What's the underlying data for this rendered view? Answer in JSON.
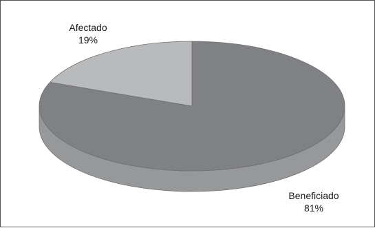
{
  "chart_data": {
    "type": "pie",
    "style": "3d",
    "title": "",
    "slices": [
      {
        "label": "Beneficiado",
        "value": 81,
        "value_label": "81%",
        "color": "#808184",
        "side_color": "#97989a"
      },
      {
        "label": "Afectado",
        "value": 19,
        "value_label": "19%",
        "color": "#b9babc",
        "side_color": "#a7a8aa"
      }
    ],
    "legend": "none",
    "data_labels": "outside"
  }
}
